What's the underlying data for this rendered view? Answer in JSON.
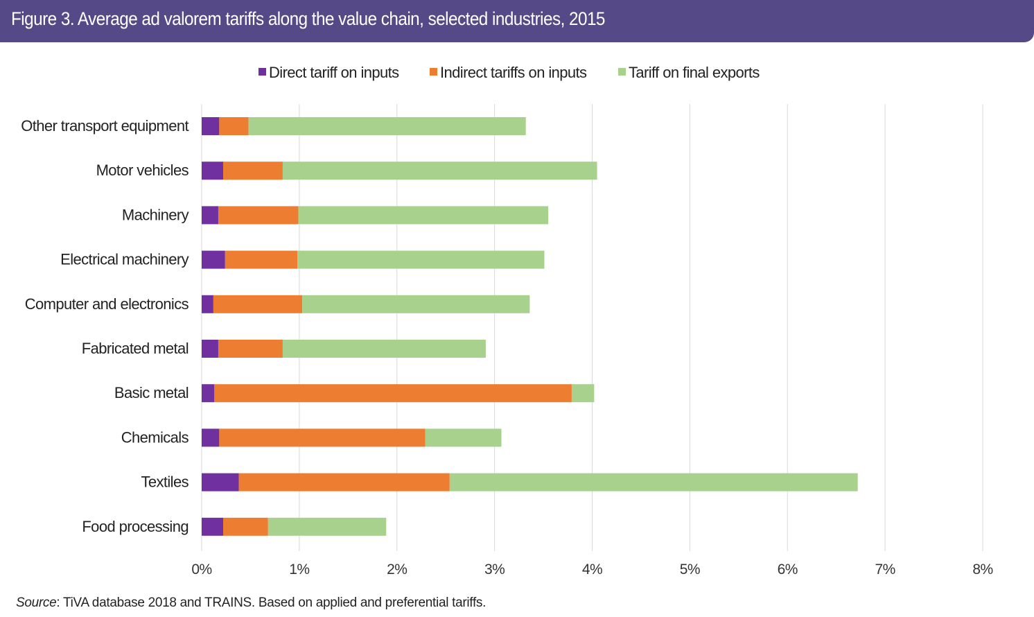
{
  "figure": {
    "title": "Figure 3. Average ad valorem tariffs along the value chain, selected industries, 2015",
    "source_label": "Source",
    "source_text": ": TiVA database 2018 and TRAINS. Based on applied and preferential tariffs."
  },
  "chart_data": {
    "type": "bar",
    "orientation": "horizontal",
    "stacked": true,
    "title": "",
    "xlabel": "",
    "ylabel": "",
    "categories": [
      "Other transport equipment",
      "Motor vehicles",
      "Machinery",
      "Electrical machinery",
      "Computer and electronics",
      "Fabricated metal",
      "Basic metal",
      "Chemicals",
      "Textiles",
      "Food processing"
    ],
    "series": [
      {
        "name": "Direct tariff on inputs",
        "color": "#7030a0",
        "values": [
          0.18,
          0.22,
          0.17,
          0.24,
          0.12,
          0.17,
          0.13,
          0.18,
          0.38,
          0.22
        ]
      },
      {
        "name": "Indirect tariffs on inputs",
        "color": "#ed7d31",
        "values": [
          0.3,
          0.61,
          0.82,
          0.74,
          0.91,
          0.66,
          3.66,
          2.11,
          2.16,
          0.46
        ]
      },
      {
        "name": "Tariff on final exports",
        "color": "#a9d18e",
        "values": [
          2.84,
          3.22,
          2.56,
          2.53,
          2.33,
          2.08,
          0.23,
          0.78,
          4.18,
          1.21
        ]
      }
    ],
    "xlim": [
      0,
      8
    ],
    "xticks": [
      {
        "value": 0,
        "label": "0%"
      },
      {
        "value": 1,
        "label": "1%"
      },
      {
        "value": 2,
        "label": "2%"
      },
      {
        "value": 3,
        "label": "3%"
      },
      {
        "value": 4,
        "label": "4%"
      },
      {
        "value": 5,
        "label": "5%"
      },
      {
        "value": 6,
        "label": "6%"
      },
      {
        "value": 7,
        "label": "7%"
      },
      {
        "value": 8,
        "label": "8%"
      }
    ],
    "grid": true,
    "legend_position": "top-center"
  },
  "colors": {
    "title_bar": "#554a87",
    "gridline": "#d9d9d9",
    "text": "#222222"
  }
}
